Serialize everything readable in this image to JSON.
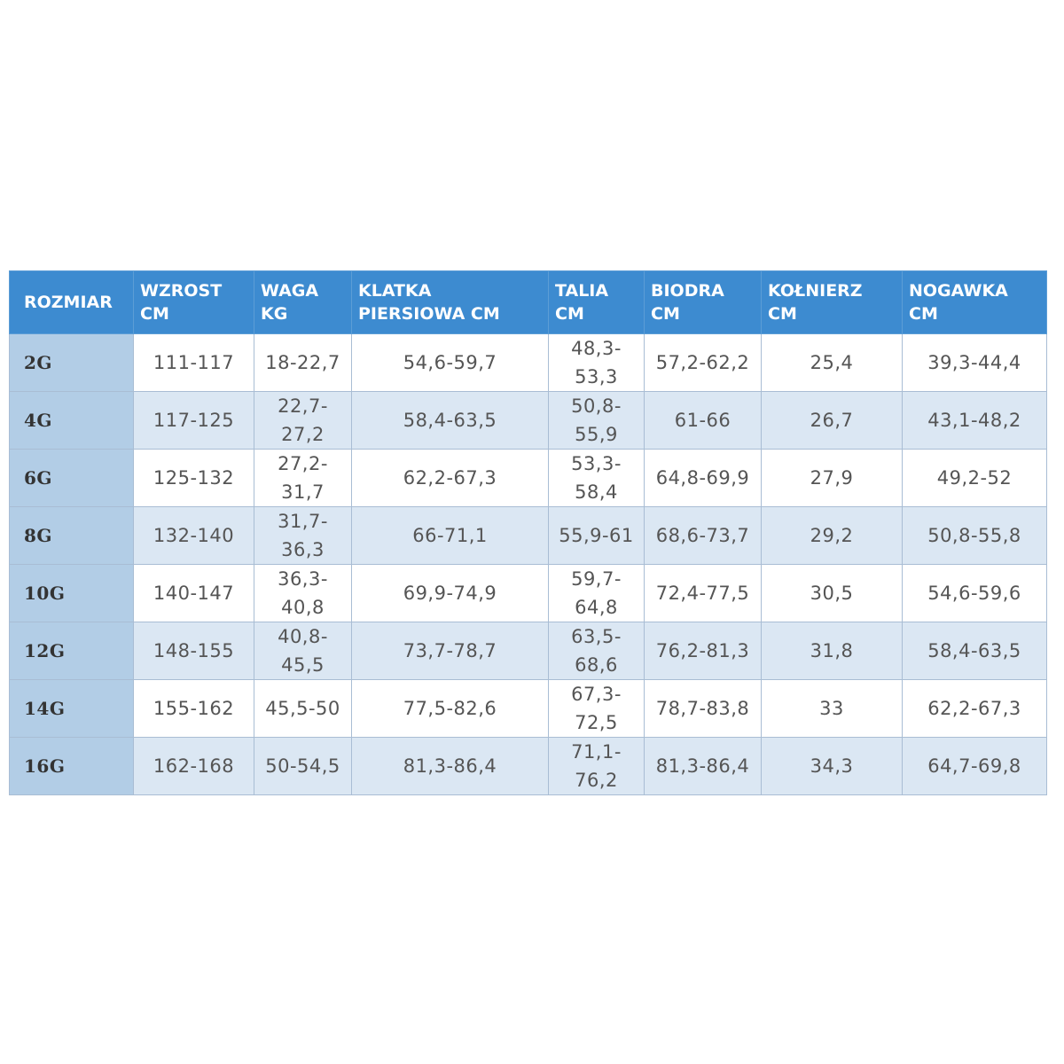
{
  "table": {
    "header": [
      [
        "ROZMIAR"
      ],
      [
        "WZROST",
        "CM"
      ],
      [
        "WAGA",
        "KG"
      ],
      [
        "KLATKA",
        "PIERSIOWA CM"
      ],
      [
        "TALIA",
        "CM"
      ],
      [
        "BIODRA",
        "CM"
      ],
      [
        "KOŁNIERZ",
        "CM"
      ],
      [
        "NOGAWKA",
        "CM"
      ]
    ],
    "rows": [
      [
        "2G",
        "111-117",
        "18-22,7",
        "54,6-59,7",
        "48,3-53,3",
        "57,2-62,2",
        "25,4",
        "39,3-44,4"
      ],
      [
        "4G",
        "117-125",
        "22,7-27,2",
        "58,4-63,5",
        "50,8-55,9",
        "61-66",
        "26,7",
        "43,1-48,2"
      ],
      [
        "6G",
        "125-132",
        "27,2-31,7",
        "62,2-67,3",
        "53,3-58,4",
        "64,8-69,9",
        "27,9",
        "49,2-52"
      ],
      [
        "8G",
        "132-140",
        "31,7-36,3",
        "66-71,1",
        "55,9-61",
        "68,6-73,7",
        "29,2",
        "50,8-55,8"
      ],
      [
        "10G",
        "140-147",
        "36,3-40,8",
        "69,9-74,9",
        "59,7-64,8",
        "72,4-77,5",
        "30,5",
        "54,6-59,6"
      ],
      [
        "12G",
        "148-155",
        "40,8-45,5",
        "73,7-78,7",
        "63,5-68,6",
        "76,2-81,3",
        "31,8",
        "58,4-63,5"
      ],
      [
        "14G",
        "155-162",
        "45,5-50",
        "77,5-82,6",
        "67,3-72,5",
        "78,7-83,8",
        "33",
        "62,2-67,3"
      ],
      [
        "16G",
        "162-168",
        "50-54,5",
        "81,3-86,4",
        "71,1-76,2",
        "81,3-86,4",
        "34,3",
        "64,7-69,8"
      ]
    ]
  }
}
